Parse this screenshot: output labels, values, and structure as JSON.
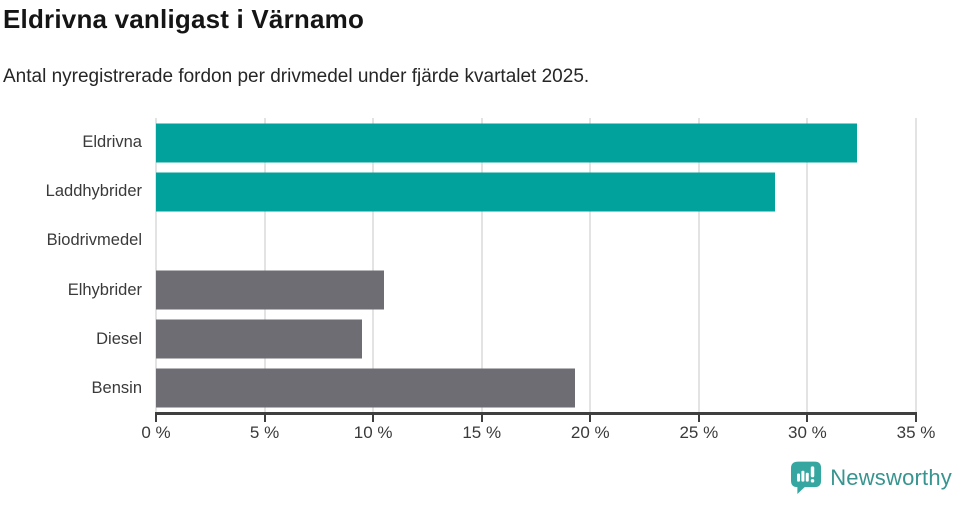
{
  "header": {
    "title": "Eldrivna vanligast i Värnamo",
    "subtitle": "Antal nyregistrerade fordon per drivmedel under fjärde kvartalet 2025."
  },
  "chart_data": {
    "type": "bar",
    "orientation": "horizontal",
    "title": "Eldrivna vanligast i Värnamo",
    "subtitle": "Antal nyregistrerade fordon per drivmedel under fjärde kvartalet 2025.",
    "categories": [
      "Eldrivna",
      "Laddhybrider",
      "Biodrivmedel",
      "Elhybrider",
      "Diesel",
      "Bensin"
    ],
    "values": [
      32.3,
      28.5,
      0,
      10.5,
      9.5,
      19.3
    ],
    "unit": "%",
    "xlim": [
      0,
      35
    ],
    "xticks": [
      0,
      5,
      10,
      15,
      20,
      25,
      30,
      35
    ],
    "xtick_labels": [
      "0 %",
      "5 %",
      "10 %",
      "15 %",
      "20 %",
      "25 %",
      "30 %",
      "35 %"
    ],
    "grid": true,
    "legend": false,
    "bar_colors": [
      "#00a29b",
      "#00a29b",
      "#6e6d73",
      "#6e6d73",
      "#6e6d73",
      "#6e6d73"
    ],
    "colors": {
      "highlight": "#00a29b",
      "default_bar": "#6e6d73",
      "gridline": "#e3e3e3",
      "axis": "#3f3f3f"
    }
  },
  "footer": {
    "brand": "Newsworthy",
    "brand_color": "#38948f",
    "icon": "newsworthy-chart-bubble-icon",
    "icon_color": "#35a7a0"
  }
}
